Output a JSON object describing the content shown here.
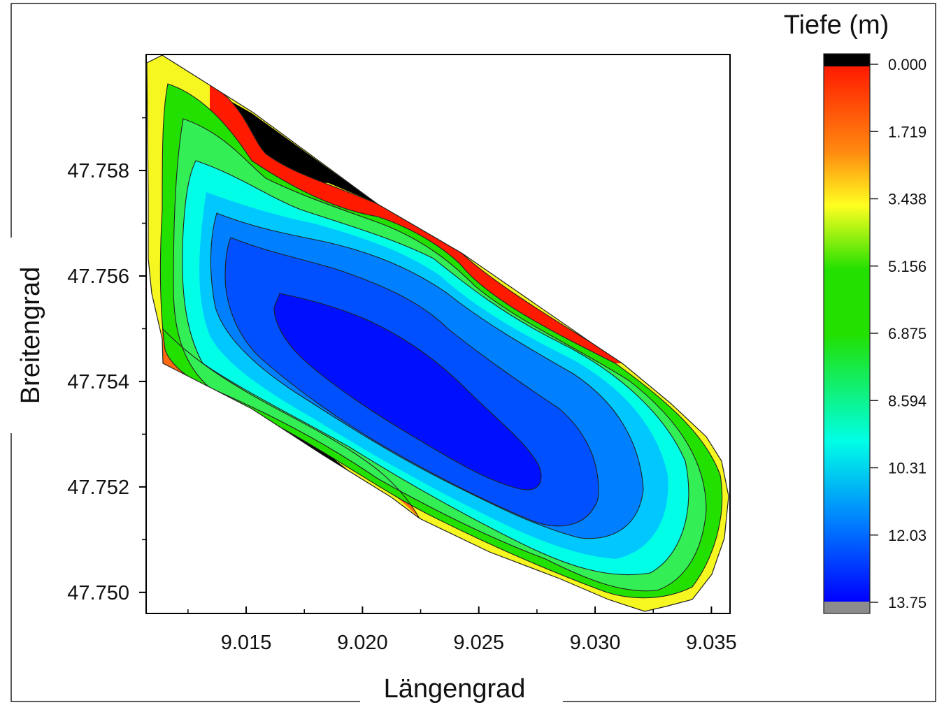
{
  "chart_data": {
    "type": "heatmap",
    "subtype": "filled-contour-bathymetry",
    "title": "",
    "xlabel": "Längengrad",
    "ylabel": "Breitengrad",
    "xlim": [
      9.0107,
      9.0358
    ],
    "ylim": [
      47.7496,
      47.7602
    ],
    "xticks": [
      "9.015",
      "9.020",
      "9.025",
      "9.030",
      "9.035"
    ],
    "yticks": [
      "47.750",
      "47.752",
      "47.754",
      "47.756",
      "47.758"
    ],
    "grid": false,
    "colorbar": {
      "title": "Tiefe (m)",
      "placement": "right",
      "range": [
        0,
        13.75
      ],
      "tick_labels": [
        "0.000",
        "1.719",
        "3.438",
        "5.156",
        "6.875",
        "8.594",
        "10.31",
        "12.03",
        "13.75"
      ],
      "colors": {
        "shallow": "#000000",
        "d1": "#ff1a00",
        "d2": "#ff8a10",
        "d3": "#ffff20",
        "d4": "#22e000",
        "d5": "#00ffe6",
        "d6": "#0080ff",
        "d7": "#0000ff",
        "beyond": "#8c8c8c"
      }
    },
    "contour_levels_m": [
      1.0,
      2.5,
      4.0,
      6.0,
      8.0,
      10.0,
      12.0
    ],
    "field": {
      "description_points": [
        {
          "x": 9.0125,
          "y": 47.759,
          "depth": 3.5
        },
        {
          "x": 9.0155,
          "y": 47.7585,
          "depth": 0.0
        },
        {
          "x": 9.018,
          "y": 47.7576,
          "depth": 0.0
        },
        {
          "x": 9.0165,
          "y": 47.7545,
          "depth": 12.5
        },
        {
          "x": 9.02,
          "y": 47.7548,
          "depth": 13.5
        },
        {
          "x": 9.022,
          "y": 47.754,
          "depth": 13.6
        },
        {
          "x": 9.0265,
          "y": 47.7522,
          "depth": 13.2
        },
        {
          "x": 9.026,
          "y": 47.7556,
          "depth": 1.0
        },
        {
          "x": 9.015,
          "y": 47.7528,
          "depth": 0.0
        },
        {
          "x": 9.0325,
          "y": 47.751,
          "depth": 8.5
        },
        {
          "x": 9.032,
          "y": 47.7498,
          "depth": 4.0
        }
      ]
    }
  }
}
